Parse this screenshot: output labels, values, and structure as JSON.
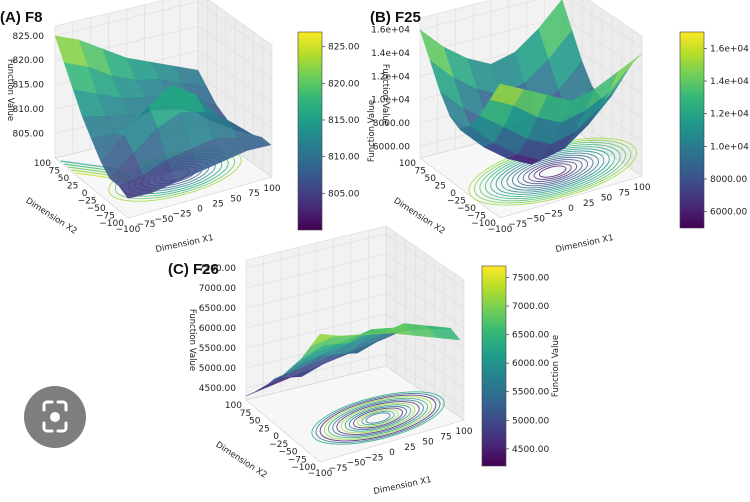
{
  "chart_data": [
    {
      "type": "surface3d",
      "panel_label": "(A) F8",
      "xlabel": "Dimension X1",
      "ylabel": "Dimension X2",
      "zlabel": "Function Value",
      "x_ticks": [
        "−100",
        "−75",
        "−50",
        "−25",
        "0",
        "25",
        "50",
        "75",
        "100"
      ],
      "y_ticks": [
        "100",
        "75",
        "50",
        "25",
        "0",
        "−25",
        "−50",
        "−75",
        "−100"
      ],
      "z_ticks": [
        "805.00",
        "810.00",
        "815.00",
        "820.00",
        "825.00"
      ],
      "zlim": [
        800,
        827
      ],
      "colorbar_ticks": [
        "805.00",
        "810.00",
        "815.00",
        "820.00",
        "825.00"
      ],
      "colorbar_label": "Function Value",
      "surface_rows": [
        [
          825,
          821,
          817,
          813,
          810,
          807,
          805,
          805,
          804
        ],
        [
          823,
          819,
          815,
          812,
          810,
          811,
          809,
          806,
          804
        ],
        [
          820,
          816,
          813,
          811,
          812,
          816,
          813,
          808,
          805
        ],
        [
          817,
          814,
          812,
          811,
          814,
          819,
          815,
          809,
          806
        ],
        [
          815,
          813,
          811,
          810,
          812,
          816,
          814,
          810,
          807
        ],
        [
          813,
          811,
          809,
          808,
          808,
          810,
          811,
          809,
          808
        ],
        [
          811,
          809,
          807,
          806,
          805,
          806,
          807,
          808,
          808
        ]
      ]
    },
    {
      "type": "surface3d",
      "panel_label": "(B) F25",
      "xlabel": "Dimension X1",
      "ylabel": "Dimension X2",
      "zlabel": "Function Value",
      "x_ticks": [
        "−100",
        "−75",
        "−50",
        "−25",
        "0",
        "25",
        "50",
        "75",
        "100"
      ],
      "y_ticks": [
        "100",
        "75",
        "50",
        "25",
        "0",
        "−25",
        "−50",
        "−75",
        "−100"
      ],
      "z_ticks": [
        "6000.00",
        "8000.00",
        "1.0e+04",
        "1.2e+04",
        "1.4e+04",
        "1.6e+04"
      ],
      "zlim": [
        5000,
        17000
      ],
      "colorbar_ticks": [
        "6000.00",
        "8000.00",
        "1.0e+04",
        "1.2e+04",
        "1.4e+04",
        "1.6e+04"
      ],
      "colorbar_label": "Function Value",
      "surface_rows": [
        [
          16000,
          14000,
          12000,
          10500,
          10000,
          11000,
          12500,
          14500,
          16500
        ],
        [
          14000,
          12000,
          10000,
          8500,
          8000,
          9000,
          11000,
          13500,
          15500
        ],
        [
          12500,
          10500,
          8500,
          7000,
          6500,
          7500,
          9500,
          12000,
          14500
        ],
        [
          11500,
          9500,
          7500,
          6000,
          5500,
          6500,
          8500,
          11000,
          13500
        ],
        [
          12000,
          10000,
          8000,
          6500,
          6000,
          7000,
          9000,
          11500,
          14000
        ],
        [
          13500,
          11500,
          9500,
          8000,
          7500,
          8500,
          10500,
          12500,
          15000
        ],
        [
          15500,
          13500,
          11500,
          10000,
          9500,
          10500,
          12500,
          14500,
          16000
        ]
      ]
    },
    {
      "type": "surface3d",
      "panel_label": "(C) F26",
      "xlabel": "Dimension X1",
      "ylabel": "Dimension X2",
      "zlabel": "Function Value",
      "x_ticks": [
        "−100",
        "−75",
        "−50",
        "−25",
        "0",
        "25",
        "50",
        "75",
        "100"
      ],
      "y_ticks": [
        "100",
        "75",
        "50",
        "25",
        "0",
        "−25",
        "−50",
        "−75",
        "−100"
      ],
      "z_ticks": [
        "4500.00",
        "5000.00",
        "5500.00",
        "6000.00",
        "6500.00",
        "7000.00",
        "7500.00"
      ],
      "zlim": [
        4200,
        7700
      ],
      "colorbar_ticks": [
        "4500.00",
        "5000.00",
        "5500.00",
        "6000.00",
        "6500.00",
        "7000.00",
        "7500.00"
      ],
      "colorbar_label": "Function Value",
      "surface_rows": [
        [
          4300,
          4600,
          4900,
          5300,
          5600,
          6000,
          6400,
          6900,
          7400
        ],
        [
          4400,
          4800,
          5100,
          5400,
          5800,
          6200,
          6600,
          7000,
          7200
        ],
        [
          4500,
          4700,
          5200,
          5600,
          5900,
          6300,
          6500,
          6900,
          7100
        ],
        [
          4600,
          4900,
          5300,
          5500,
          6000,
          6400,
          6700,
          6800,
          7000
        ],
        [
          4700,
          5000,
          5200,
          5700,
          6100,
          6300,
          6600,
          6900,
          6800
        ],
        [
          4800,
          5100,
          5400,
          5800,
          6000,
          6200,
          6500,
          6700,
          6600
        ],
        [
          4900,
          5200,
          5500,
          5700,
          5900,
          6100,
          6300,
          6500,
          6400
        ]
      ]
    }
  ],
  "icons": {
    "lens": "image-search-lens-icon"
  }
}
